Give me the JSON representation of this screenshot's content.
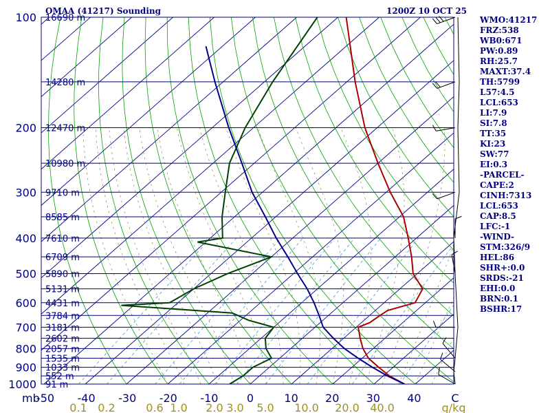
{
  "header": {
    "station": "OMAA (41217) Sounding",
    "time": "1200Z 10 OCT 25"
  },
  "indices": [
    "WMO:41217",
    "FRZ:538",
    "WB0:671",
    "PW:0.89",
    "RH:25.7",
    "MAXT:37.4",
    "TH:5799",
    "L57:4.5",
    "LCL:653",
    "LI:7.9",
    "SI:7.8",
    "TT:35",
    "KI:23",
    "SW:77",
    "EI:0.3",
    "-PARCEL-",
    "CAPE:2",
    "CINH:7313",
    "LCL:653",
    "CAP:8.5",
    "LFC:-1",
    "-WIND-",
    "STM:326/9",
    "HEL:86",
    "SHR+:0.0",
    "SRDS:-21",
    "EHI:0.0",
    "BRN:0.1",
    "BSHR:17"
  ],
  "chart_data": {
    "type": "line",
    "diagram": "skew-T log-P",
    "pressure_range": [
      1000,
      100
    ],
    "pressure_ticks": [
      "100",
      "200",
      "300",
      "400",
      "500",
      "600",
      "700",
      "800",
      "900",
      "1000"
    ],
    "pressure_unit": "mb",
    "temp_ticks": [
      "-50",
      "-40",
      "-30",
      "-20",
      "-10",
      "0",
      "10",
      "20",
      "30",
      "40",
      "C"
    ],
    "mixing_ratio_labels": [
      "0.1",
      "0.2",
      "0.6",
      "1.0",
      "2.0",
      "3.0",
      "5.0",
      "10.0",
      "20.0",
      "40.0",
      "g/kg"
    ],
    "height_labels": [
      {
        "p": 100,
        "text": "16690 m"
      },
      {
        "p": 150,
        "text": "14280 m"
      },
      {
        "p": 200,
        "text": "12470 m"
      },
      {
        "p": 250,
        "text": "10980 m"
      },
      {
        "p": 300,
        "text": "9710 m"
      },
      {
        "p": 350,
        "text": "8585 m"
      },
      {
        "p": 400,
        "text": "7610 m"
      },
      {
        "p": 450,
        "text": "6709 m"
      },
      {
        "p": 500,
        "text": "5890 m"
      },
      {
        "p": 550,
        "text": "5131 m"
      },
      {
        "p": 600,
        "text": "4431 m"
      },
      {
        "p": 650,
        "text": "3784 m"
      },
      {
        "p": 700,
        "text": "3181 m"
      },
      {
        "p": 750,
        "text": "2602 m"
      },
      {
        "p": 800,
        "text": "2057 m"
      },
      {
        "p": 850,
        "text": "1535 m"
      },
      {
        "p": 900,
        "text": "1033 m"
      },
      {
        "p": 950,
        "text": "552 m"
      },
      {
        "p": 1000,
        "text": "91 m"
      }
    ],
    "series": [
      {
        "color": "#aa0000",
        "points": [
          [
            1000,
            37.4
          ],
          [
            950,
            31.5
          ],
          [
            900,
            26.5
          ],
          [
            850,
            21.5
          ],
          [
            800,
            17.5
          ],
          [
            750,
            14.0
          ],
          [
            700,
            10.5
          ],
          [
            680,
            12.0
          ],
          [
            650,
            12.5
          ],
          [
            630,
            13.0
          ],
          [
            600,
            17.5
          ],
          [
            550,
            15.5
          ],
          [
            500,
            9.0
          ],
          [
            450,
            4.0
          ],
          [
            400,
            -2.0
          ],
          [
            350,
            -9.0
          ],
          [
            300,
            -19.0
          ],
          [
            250,
            -30.0
          ],
          [
            200,
            -43.0
          ],
          [
            150,
            -58.0
          ],
          [
            100,
            -78.0
          ]
        ]
      },
      {
        "color": "#004000",
        "points": [
          [
            1000,
            -5.0
          ],
          [
            950,
            -4.0
          ],
          [
            900,
            -4.0
          ],
          [
            850,
            -2.0
          ],
          [
            800,
            -6.0
          ],
          [
            750,
            -9.0
          ],
          [
            700,
            -10.0
          ],
          [
            670,
            -18.0
          ],
          [
            640,
            -24.0
          ],
          [
            610,
            -53.0
          ],
          [
            600,
            -42.0
          ],
          [
            550,
            -40.0
          ],
          [
            500,
            -36.0
          ],
          [
            450,
            -30.0
          ],
          [
            410,
            -52.0
          ],
          [
            400,
            -47.0
          ],
          [
            350,
            -53.0
          ],
          [
            300,
            -59.0
          ],
          [
            250,
            -66.0
          ],
          [
            200,
            -72.0
          ],
          [
            150,
            -78.0
          ],
          [
            100,
            -85.0
          ]
        ]
      },
      {
        "color": "#00008b",
        "points": [
          [
            1000,
            37.4
          ],
          [
            950,
            31.0
          ],
          [
            900,
            25.0
          ],
          [
            850,
            19.0
          ],
          [
            800,
            13.0
          ],
          [
            750,
            7.5
          ],
          [
            700,
            2.0
          ],
          [
            653,
            -2.0
          ],
          [
            600,
            -7.0
          ],
          [
            550,
            -12.5
          ],
          [
            500,
            -19.0
          ],
          [
            450,
            -26.0
          ],
          [
            400,
            -34.0
          ],
          [
            350,
            -42.5
          ],
          [
            300,
            -52.5
          ],
          [
            250,
            -63.0
          ],
          [
            200,
            -76.0
          ],
          [
            150,
            -92.0
          ],
          [
            120,
            -104.0
          ]
        ]
      }
    ],
    "wind_profile": [
      {
        "p": 1000,
        "dir": 300,
        "spd": 5
      },
      {
        "p": 925,
        "dir": 310,
        "spd": 5
      },
      {
        "p": 850,
        "dir": 320,
        "spd": 5
      },
      {
        "p": 700,
        "dir": 270,
        "spd": 10
      },
      {
        "p": 500,
        "dir": 350,
        "spd": 5
      },
      {
        "p": 400,
        "dir": 0,
        "spd": 5
      },
      {
        "p": 300,
        "dir": 250,
        "spd": 10
      },
      {
        "p": 200,
        "dir": 260,
        "spd": 10
      },
      {
        "p": 150,
        "dir": 250,
        "spd": 20
      },
      {
        "p": 100,
        "dir": 250,
        "spd": 30
      }
    ]
  }
}
